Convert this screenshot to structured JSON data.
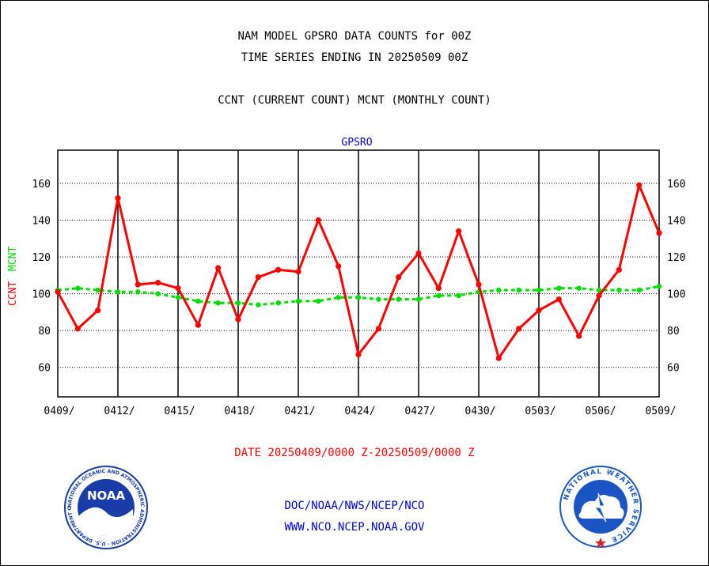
{
  "title_line1": "NAM MODEL GPSRO DATA COUNTS for 00Z",
  "title_line2": "TIME SERIES ENDING IN 20250509 00Z",
  "legend_line": "CCNT (CURRENT COUNT) MCNT (MONTHLY COUNT)",
  "footer": {
    "date_range": "DATE 20250409/0000 Z-20250509/0000 Z",
    "org_path": "DOC/NOAA/NWS/NCEP/NCO",
    "website": "WWW.NCO.NCEP.NOAA.GOV"
  },
  "colors": {
    "ccnt": "#ff0000",
    "mcnt": "#00dd00",
    "panel_title": "#0000cc",
    "footer_blue": "#0000cc",
    "noaa_blue": "#1a3ca8",
    "nws_blue": "#1b55c4"
  },
  "logos": {
    "noaa": {
      "icon": "noaa-seal",
      "text": "NOAA",
      "ring": "NATIONAL OCEANIC AND ATMOSPHERIC ADMINISTRATION · U.S. DEPARTMENT OF COMMERCE"
    },
    "nws": {
      "icon": "nws-seal",
      "ring": "NATIONAL WEATHER SERVICE"
    }
  },
  "chart_data": {
    "type": "line",
    "title": "GPSRO",
    "ylabel_left_ccnt": "CCNT",
    "ylabel_left_mcnt": "MCNT",
    "ylim": [
      44,
      178
    ],
    "yticks": [
      60,
      80,
      100,
      120,
      140,
      160
    ],
    "x": [
      "0409",
      "0410",
      "0411",
      "0412",
      "0413",
      "0414",
      "0415",
      "0416",
      "0417",
      "0418",
      "0419",
      "0420",
      "0421",
      "0422",
      "0423",
      "0424",
      "0425",
      "0426",
      "0427",
      "0428",
      "0429",
      "0430",
      "0501",
      "0502",
      "0503",
      "0504",
      "0505",
      "0506",
      "0507",
      "0508",
      "0509"
    ],
    "xtick_labels": [
      "0409/",
      "0412/",
      "0415/",
      "0418/",
      "0421/",
      "0424/",
      "0427/",
      "0430/",
      "0503/",
      "0506/",
      "0509/"
    ],
    "grid": true,
    "series": [
      {
        "name": "CCNT",
        "values": [
          101,
          81,
          91,
          152,
          105,
          106,
          103,
          83,
          114,
          86,
          109,
          113,
          112,
          140,
          115,
          67,
          81,
          109,
          122,
          103,
          134,
          105,
          65,
          81,
          91,
          97,
          77,
          99,
          113,
          159,
          133
        ]
      },
      {
        "name": "MCNT",
        "values": [
          102,
          103,
          102,
          101,
          101,
          100,
          98,
          96,
          95,
          95,
          94,
          95,
          96,
          96,
          98,
          98,
          97,
          97,
          97,
          99,
          99,
          101,
          102,
          102,
          102,
          103,
          103,
          102,
          102,
          102,
          104
        ]
      }
    ]
  }
}
